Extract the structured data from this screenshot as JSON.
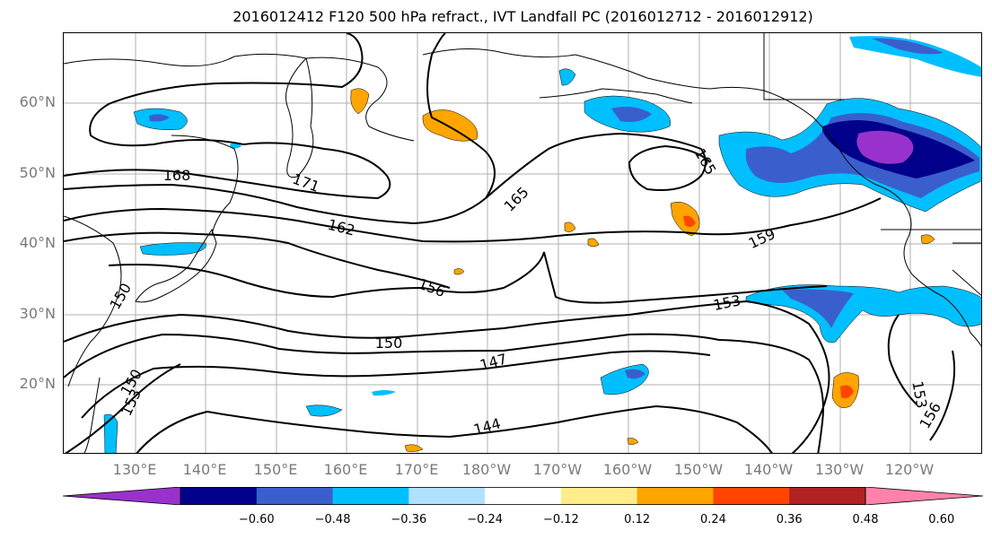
{
  "title": "2016012412 F120 500 hPa refract., IVT Landfall PC (2016012712 - 2016012912)",
  "lat_labels": [
    "60°N",
    "50°N",
    "40°N",
    "30°N",
    "20°N"
  ],
  "lon_labels": [
    "130°E",
    "140°E",
    "150°E",
    "160°E",
    "170°E",
    "180°W",
    "170°W",
    "160°W",
    "150°W",
    "140°W",
    "130°W",
    "120°W"
  ],
  "contour_labels": [
    "168",
    "171",
    "165",
    "165",
    "162",
    "159",
    "156",
    "153",
    "150",
    "150",
    "147",
    "144",
    "153",
    "156",
    "153",
    "150"
  ],
  "colorbar": {
    "colors": [
      "#9932cc",
      "#00008b",
      "#3a5fcd",
      "#00bfff",
      "#b0e2ff",
      "#ffffff",
      "#ffec8b",
      "#ffa500",
      "#ff4500",
      "#b22222",
      "#ff82ab"
    ],
    "tick_labels": [
      "−0.60",
      "−0.48",
      "−0.36",
      "−0.24",
      "−0.12",
      "0.12",
      "0.24",
      "0.36",
      "0.48",
      "0.60"
    ]
  },
  "colors": {
    "grid": "#b0b0b0",
    "contour": "#000000",
    "coast": "#000000",
    "tick_label": "#7a7a7a"
  }
}
